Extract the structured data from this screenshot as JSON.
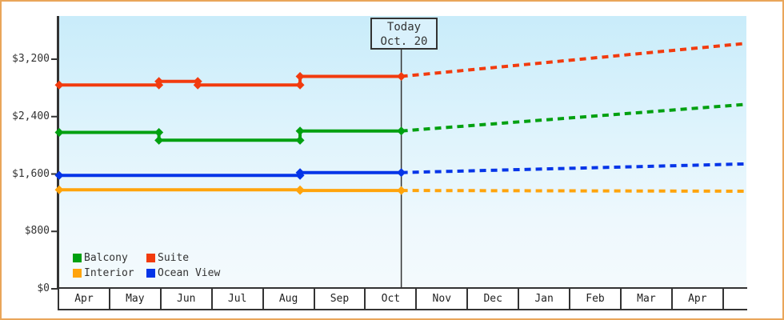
{
  "colors": {
    "page_border": "#e9a65a",
    "axis": "#333333",
    "plot_gradient_top": "#c9ecfa",
    "plot_gradient_bottom": "#f4fafd",
    "today_box_fill": "#d9f1fc",
    "today_line": "#333333"
  },
  "chart_data": {
    "type": "line",
    "title": "",
    "today_marker": {
      "line1": "Today",
      "line2": "Oct. 20",
      "x_months": 6.69
    },
    "x_axis": {
      "unit": "month",
      "labels": [
        "Apr",
        "May",
        "Jun",
        "Jul",
        "Aug",
        "Sep",
        "Oct",
        "Nov",
        "Dec",
        "Jan",
        "Feb",
        "Mar",
        "Apr",
        ""
      ]
    },
    "y_axis": {
      "tick_labels": [
        "$3,200",
        "$2,400",
        "$1,600",
        "$800",
        "$0"
      ],
      "tick_values": [
        3200,
        2400,
        1600,
        800,
        0
      ],
      "max_value": 3850,
      "grid": false
    },
    "legend_position": "bottom-left",
    "series": [
      {
        "name": "Balcony",
        "color": "#00a010",
        "solid": [
          [
            0,
            2180
          ],
          [
            1.95,
            2180
          ],
          [
            1.95,
            2070
          ],
          [
            4.71,
            2070
          ],
          [
            4.71,
            2200
          ],
          [
            6.69,
            2200
          ]
        ],
        "projected": [
          [
            6.69,
            2200
          ],
          [
            13.42,
            2570
          ]
        ]
      },
      {
        "name": "Suite",
        "color": "#f23b0e",
        "solid": [
          [
            0,
            2840
          ],
          [
            1.95,
            2840
          ],
          [
            1.95,
            2890
          ],
          [
            2.71,
            2890
          ],
          [
            2.71,
            2840
          ],
          [
            4.71,
            2840
          ],
          [
            4.71,
            2960
          ],
          [
            6.69,
            2960
          ]
        ],
        "projected": [
          [
            6.69,
            2960
          ],
          [
            13.42,
            3420
          ]
        ]
      },
      {
        "name": "Interior",
        "color": "#ffa40c",
        "solid": [
          [
            0,
            1380
          ],
          [
            4.71,
            1380
          ],
          [
            4.71,
            1370
          ],
          [
            6.69,
            1370
          ]
        ],
        "projected": [
          [
            6.69,
            1370
          ],
          [
            13.42,
            1360
          ]
        ]
      },
      {
        "name": "Ocean View",
        "color": "#0535e8",
        "solid": [
          [
            0,
            1580
          ],
          [
            4.71,
            1580
          ],
          [
            4.71,
            1620
          ],
          [
            6.69,
            1620
          ]
        ],
        "projected": [
          [
            6.69,
            1620
          ],
          [
            13.42,
            1740
          ]
        ]
      }
    ]
  }
}
